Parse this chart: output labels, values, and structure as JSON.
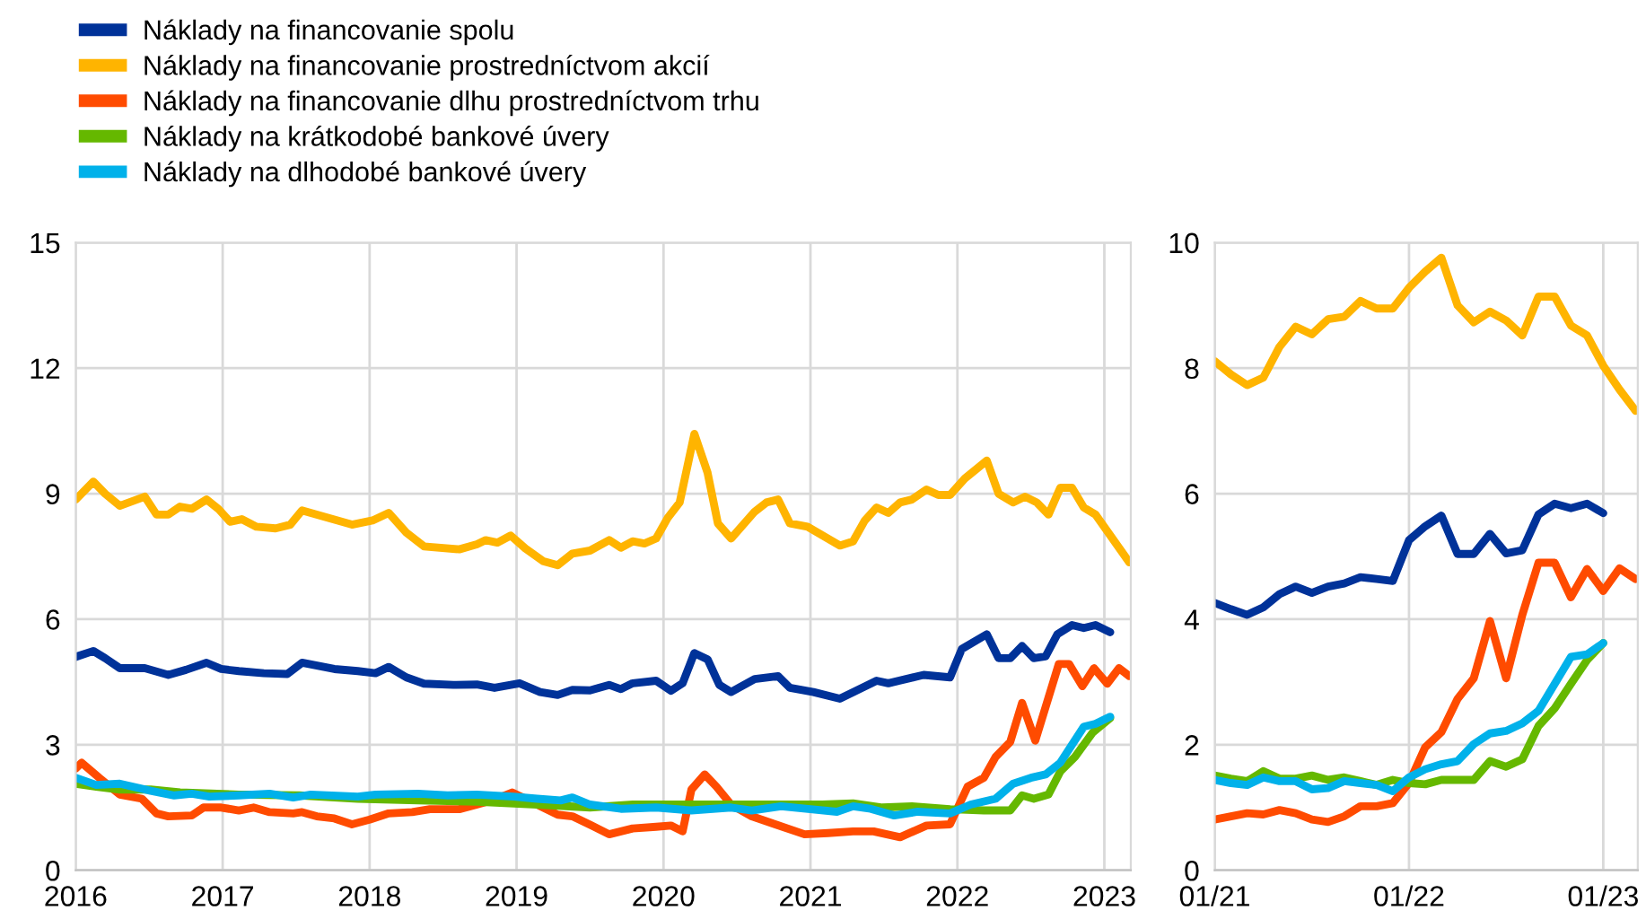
{
  "chart_data": [
    {
      "type": "line",
      "legend": "top left",
      "grid": true,
      "xlim": [
        2016.0,
        2023.18
      ],
      "xticks": [
        2016,
        2017,
        2018,
        2019,
        2020,
        2021,
        2022,
        2023
      ],
      "ylim": [
        0,
        15
      ],
      "yticks": [
        0,
        3,
        6,
        9,
        12,
        15
      ],
      "line_style": "solid",
      "marker": "none",
      "series": [
        {
          "name": "Náklady na financovanie spolu",
          "color": "#003299",
          "x": [
            2016.0,
            2016.12,
            2016.2,
            2016.3,
            2016.47,
            2016.63,
            2016.75,
            2016.89,
            2016.99,
            2017.11,
            2017.28,
            2017.44,
            2017.54,
            2017.76,
            2017.92,
            2018.04,
            2018.13,
            2018.25,
            2018.37,
            2018.57,
            2018.73,
            2018.85,
            2019.02,
            2019.16,
            2019.28,
            2019.38,
            2019.5,
            2019.63,
            2019.71,
            2019.79,
            2019.95,
            2020.05,
            2020.13,
            2020.21,
            2020.3,
            2020.38,
            2020.46,
            2020.62,
            2020.78,
            2020.86,
            2021.02,
            2021.2,
            2021.45,
            2021.53,
            2021.77,
            2021.95,
            2022.03,
            2022.2,
            2022.28,
            2022.36,
            2022.44,
            2022.52,
            2022.6,
            2022.68,
            2022.78,
            2022.86,
            2022.94,
            2023.04
          ],
          "values": [
            5.1,
            5.24,
            5.07,
            4.83,
            4.83,
            4.67,
            4.79,
            4.96,
            4.81,
            4.76,
            4.71,
            4.69,
            4.96,
            4.81,
            4.76,
            4.71,
            4.86,
            4.61,
            4.46,
            4.43,
            4.44,
            4.36,
            4.47,
            4.26,
            4.19,
            4.31,
            4.3,
            4.43,
            4.33,
            4.47,
            4.53,
            4.29,
            4.47,
            5.19,
            5.04,
            4.43,
            4.26,
            4.57,
            4.64,
            4.36,
            4.26,
            4.1,
            4.53,
            4.47,
            4.67,
            4.61,
            5.29,
            5.64,
            5.07,
            5.07,
            5.36,
            5.07,
            5.11,
            5.64,
            5.86,
            5.79,
            5.86,
            5.69
          ]
        },
        {
          "name": "Náklady na financovanie prostredníctvom akcií",
          "color": "#ffb400",
          "x": [
            2016.0,
            2016.12,
            2016.2,
            2016.3,
            2016.47,
            2016.55,
            2016.63,
            2016.71,
            2016.79,
            2016.89,
            2016.97,
            2017.05,
            2017.13,
            2017.23,
            2017.36,
            2017.46,
            2017.54,
            2017.68,
            2017.88,
            2018.02,
            2018.13,
            2018.25,
            2018.37,
            2018.61,
            2018.73,
            2018.79,
            2018.87,
            2018.96,
            2019.06,
            2019.18,
            2019.28,
            2019.38,
            2019.5,
            2019.63,
            2019.71,
            2019.79,
            2019.87,
            2019.95,
            2020.03,
            2020.11,
            2020.21,
            2020.3,
            2020.37,
            2020.46,
            2020.62,
            2020.7,
            2020.78,
            2020.86,
            2020.98,
            2021.2,
            2021.29,
            2021.37,
            2021.45,
            2021.53,
            2021.61,
            2021.69,
            2021.79,
            2021.87,
            2021.95,
            2022.05,
            2022.2,
            2022.28,
            2022.38,
            2022.46,
            2022.54,
            2022.62,
            2022.7,
            2022.78,
            2022.86,
            2022.94,
            2023.17
          ],
          "values": [
            8.86,
            9.29,
            9.0,
            8.71,
            8.93,
            8.5,
            8.5,
            8.69,
            8.64,
            8.86,
            8.64,
            8.33,
            8.39,
            8.21,
            8.17,
            8.26,
            8.6,
            8.46,
            8.26,
            8.36,
            8.54,
            8.07,
            7.74,
            7.67,
            7.79,
            7.89,
            7.83,
            8.0,
            7.69,
            7.39,
            7.29,
            7.57,
            7.64,
            7.89,
            7.71,
            7.86,
            7.81,
            7.93,
            8.43,
            8.79,
            10.43,
            9.5,
            8.29,
            7.93,
            8.57,
            8.79,
            8.86,
            8.29,
            8.21,
            7.76,
            7.86,
            8.36,
            8.67,
            8.54,
            8.79,
            8.86,
            9.1,
            8.97,
            8.97,
            9.36,
            9.79,
            9.0,
            8.79,
            8.93,
            8.79,
            8.5,
            9.14,
            9.14,
            8.67,
            8.5,
            7.36
          ]
        },
        {
          "name": "Náklady na financovanie dlhu prostredníctvom trhu",
          "color": "#ff4b00",
          "x": [
            2016.0,
            2016.04,
            2016.16,
            2016.3,
            2016.45,
            2016.55,
            2016.63,
            2016.79,
            2016.87,
            2016.99,
            2017.11,
            2017.21,
            2017.32,
            2017.48,
            2017.54,
            2017.64,
            2017.76,
            2017.88,
            2018.0,
            2018.13,
            2018.29,
            2018.41,
            2018.61,
            2018.73,
            2018.85,
            2018.97,
            2019.06,
            2019.18,
            2019.28,
            2019.38,
            2019.51,
            2019.63,
            2019.79,
            2019.95,
            2020.05,
            2020.13,
            2020.19,
            2020.28,
            2020.36,
            2020.46,
            2020.6,
            2020.76,
            2020.96,
            2021.12,
            2021.29,
            2021.43,
            2021.61,
            2021.79,
            2021.95,
            2022.07,
            2022.18,
            2022.26,
            2022.36,
            2022.44,
            2022.53,
            2022.69,
            2022.76,
            2022.85,
            2022.93,
            2023.02,
            2023.1,
            2023.17
          ],
          "values": [
            2.43,
            2.57,
            2.21,
            1.81,
            1.71,
            1.36,
            1.29,
            1.31,
            1.5,
            1.5,
            1.43,
            1.5,
            1.39,
            1.36,
            1.39,
            1.29,
            1.24,
            1.1,
            1.21,
            1.36,
            1.39,
            1.46,
            1.46,
            1.57,
            1.69,
            1.86,
            1.71,
            1.5,
            1.33,
            1.29,
            1.07,
            0.86,
            1.0,
            1.04,
            1.07,
            0.93,
            1.93,
            2.29,
            2.0,
            1.57,
            1.29,
            1.1,
            0.86,
            0.89,
            0.93,
            0.93,
            0.79,
            1.07,
            1.1,
            2.0,
            2.21,
            2.71,
            3.07,
            4.0,
            3.1,
            4.93,
            4.93,
            4.4,
            4.83,
            4.46,
            4.83,
            4.64
          ]
        },
        {
          "name": "Náklady na krátkodobé bankové úvery",
          "color": "#65b800",
          "x": [
            2016.0,
            2016.14,
            2016.3,
            2016.51,
            2016.71,
            2017.11,
            2017.52,
            2017.92,
            2018.33,
            2018.73,
            2019.14,
            2019.5,
            2019.79,
            2020.19,
            2020.6,
            2021.08,
            2021.29,
            2021.49,
            2021.69,
            2021.95,
            2022.18,
            2022.36,
            2022.44,
            2022.52,
            2022.62,
            2022.7,
            2022.8,
            2022.92,
            2023.04
          ],
          "values": [
            2.07,
            2.0,
            1.93,
            1.93,
            1.86,
            1.81,
            1.79,
            1.71,
            1.67,
            1.64,
            1.57,
            1.5,
            1.57,
            1.57,
            1.57,
            1.57,
            1.6,
            1.5,
            1.53,
            1.46,
            1.43,
            1.43,
            1.79,
            1.71,
            1.81,
            2.36,
            2.71,
            3.29,
            3.64
          ]
        },
        {
          "name": "Náklady na dlhodobé bankové úvery",
          "color": "#00b1ea",
          "x": [
            2016.0,
            2016.14,
            2016.3,
            2016.51,
            2016.67,
            2016.79,
            2016.91,
            2017.11,
            2017.32,
            2017.48,
            2017.6,
            2017.92,
            2018.04,
            2018.33,
            2018.53,
            2018.73,
            2018.98,
            2019.14,
            2019.3,
            2019.38,
            2019.5,
            2019.71,
            2019.95,
            2020.19,
            2020.46,
            2020.6,
            2020.8,
            2021.0,
            2021.18,
            2021.29,
            2021.41,
            2021.57,
            2021.73,
            2021.95,
            2022.09,
            2022.26,
            2022.38,
            2022.5,
            2022.6,
            2022.7,
            2022.86,
            2022.94,
            2023.04
          ],
          "values": [
            2.21,
            2.04,
            2.07,
            1.9,
            1.79,
            1.83,
            1.76,
            1.79,
            1.83,
            1.74,
            1.81,
            1.76,
            1.81,
            1.83,
            1.79,
            1.81,
            1.76,
            1.71,
            1.67,
            1.74,
            1.57,
            1.47,
            1.5,
            1.43,
            1.5,
            1.43,
            1.53,
            1.46,
            1.4,
            1.53,
            1.47,
            1.31,
            1.4,
            1.36,
            1.57,
            1.71,
            2.07,
            2.21,
            2.29,
            2.57,
            3.43,
            3.5,
            3.67
          ]
        }
      ]
    },
    {
      "type": "line",
      "grid": true,
      "xlim": [
        "2021-01",
        "2023-03-05"
      ],
      "xticks": [
        {
          "value": "2021-01",
          "label": "01/21"
        },
        {
          "value": "2022-01",
          "label": "01/22"
        },
        {
          "value": "2023-01",
          "label": "01/23"
        }
      ],
      "ylim": [
        0,
        10
      ],
      "yticks": [
        0,
        2,
        4,
        6,
        8,
        10
      ],
      "line_style": "solid",
      "marker": "none",
      "x": [
        "2021-01",
        "2021-02",
        "2021-03",
        "2021-04",
        "2021-05",
        "2021-06",
        "2021-07",
        "2021-08",
        "2021-09",
        "2021-10",
        "2021-11",
        "2021-12",
        "2022-01",
        "2022-02",
        "2022-03",
        "2022-04",
        "2022-05",
        "2022-06",
        "2022-07",
        "2022-08",
        "2022-09",
        "2022-10",
        "2022-11",
        "2022-12",
        "2023-01",
        "2023-02",
        "2023-03"
      ],
      "series": [
        {
          "color": "#003299",
          "values": [
            4.26,
            4.16,
            4.07,
            4.19,
            4.4,
            4.52,
            4.42,
            4.52,
            4.57,
            4.67,
            4.64,
            4.61,
            5.26,
            5.48,
            5.65,
            5.04,
            5.04,
            5.36,
            5.05,
            5.1,
            5.67,
            5.84,
            5.77,
            5.84,
            5.69,
            null,
            null
          ]
        },
        {
          "color": "#ffb400",
          "values": [
            8.11,
            7.9,
            7.73,
            7.85,
            8.34,
            8.66,
            8.54,
            8.78,
            8.82,
            9.07,
            8.95,
            8.95,
            9.28,
            9.54,
            9.76,
            9.0,
            8.73,
            8.9,
            8.76,
            8.52,
            9.14,
            9.14,
            8.68,
            8.52,
            8.04,
            7.66,
            7.32
          ]
        },
        {
          "color": "#ff4b00",
          "values": [
            0.81,
            0.86,
            0.91,
            0.89,
            0.96,
            0.91,
            0.81,
            0.77,
            0.86,
            1.02,
            1.02,
            1.07,
            1.39,
            1.96,
            2.2,
            2.73,
            3.06,
            3.97,
            3.06,
            4.07,
            4.9,
            4.9,
            4.35,
            4.8,
            4.45,
            4.81,
            4.64
          ]
        },
        {
          "color": "#65b800",
          "values": [
            1.51,
            1.46,
            1.42,
            1.58,
            1.46,
            1.46,
            1.51,
            1.44,
            1.48,
            1.42,
            1.36,
            1.44,
            1.39,
            1.37,
            1.44,
            1.44,
            1.44,
            1.74,
            1.65,
            1.77,
            2.3,
            2.58,
            2.97,
            3.35,
            3.62,
            null,
            null
          ]
        },
        {
          "color": "#00b1ea",
          "values": [
            1.44,
            1.39,
            1.36,
            1.48,
            1.42,
            1.42,
            1.29,
            1.31,
            1.42,
            1.39,
            1.36,
            1.26,
            1.48,
            1.61,
            1.69,
            1.74,
            2.01,
            2.18,
            2.22,
            2.34,
            2.54,
            2.97,
            3.4,
            3.44,
            3.62,
            null,
            null
          ]
        }
      ]
    }
  ]
}
